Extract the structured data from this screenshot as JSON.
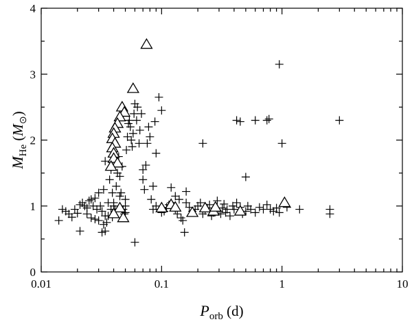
{
  "chart_data": {
    "type": "scatter",
    "title": "",
    "x_scale": "log",
    "xlim": [
      0.01,
      10
    ],
    "ylim": [
      0,
      4
    ],
    "grid": false,
    "legend": "none",
    "xlabel": {
      "main": "P",
      "sub": "orb",
      "unit": " (d)"
    },
    "ylabel": {
      "main": "M",
      "sub": "He",
      "unit_open": " (",
      "unit_main": "M",
      "unit_sub": "⊙",
      "unit_close": ")"
    },
    "x_ticks": [
      {
        "value": 0.01,
        "label": "0.01"
      },
      {
        "value": 0.1,
        "label": "0.1"
      },
      {
        "value": 1,
        "label": "1"
      },
      {
        "value": 10,
        "label": "10"
      }
    ],
    "y_ticks": [
      {
        "value": 0,
        "label": "0"
      },
      {
        "value": 1,
        "label": "1"
      },
      {
        "value": 2,
        "label": "2"
      },
      {
        "value": 3,
        "label": "3"
      },
      {
        "value": 4,
        "label": "4"
      }
    ],
    "series": [
      {
        "marker": "plus",
        "color": "#000000",
        "points": [
          [
            0.014,
            0.78
          ],
          [
            0.015,
            0.95
          ],
          [
            0.016,
            0.92
          ],
          [
            0.017,
            0.88
          ],
          [
            0.018,
            0.83
          ],
          [
            0.019,
            0.95
          ],
          [
            0.02,
            0.89
          ],
          [
            0.021,
            1.02
          ],
          [
            0.022,
            1.05
          ],
          [
            0.021,
            0.62
          ],
          [
            0.023,
            1.0
          ],
          [
            0.024,
            0.97
          ],
          [
            0.025,
            1.08
          ],
          [
            0.026,
            1.1
          ],
          [
            0.024,
            0.88
          ],
          [
            0.026,
            0.82
          ],
          [
            0.027,
            1.0
          ],
          [
            0.028,
            1.12
          ],
          [
            0.029,
            0.95
          ],
          [
            0.03,
            1.2
          ],
          [
            0.031,
            1.0
          ],
          [
            0.032,
            0.92
          ],
          [
            0.033,
            1.25
          ],
          [
            0.034,
            0.85
          ],
          [
            0.028,
            0.8
          ],
          [
            0.03,
            0.78
          ],
          [
            0.032,
            0.6
          ],
          [
            0.034,
            0.62
          ],
          [
            0.035,
            0.75
          ],
          [
            0.033,
            0.72
          ],
          [
            0.036,
            0.85
          ],
          [
            0.036,
            1.05
          ],
          [
            0.037,
            1.4
          ],
          [
            0.038,
            1.55
          ],
          [
            0.034,
            1.68
          ],
          [
            0.039,
            1.2
          ],
          [
            0.038,
            0.95
          ],
          [
            0.039,
            0.83
          ],
          [
            0.04,
            1.0
          ],
          [
            0.041,
            0.95
          ],
          [
            0.042,
            1.3
          ],
          [
            0.043,
            1.5
          ],
          [
            0.044,
            1.75
          ],
          [
            0.045,
            1.45
          ],
          [
            0.046,
            1.2
          ],
          [
            0.047,
            1.6
          ],
          [
            0.048,
            0.95
          ],
          [
            0.049,
            0.88
          ],
          [
            0.05,
            0.9
          ],
          [
            0.05,
            1.0
          ],
          [
            0.051,
            1.85
          ],
          [
            0.052,
            2.05
          ],
          [
            0.053,
            2.25
          ],
          [
            0.054,
            2.3
          ],
          [
            0.055,
            2.2
          ],
          [
            0.056,
            2.0
          ],
          [
            0.057,
            1.9
          ],
          [
            0.058,
            2.1
          ],
          [
            0.059,
            2.4
          ],
          [
            0.06,
            2.55
          ],
          [
            0.062,
            2.3
          ],
          [
            0.063,
            2.5
          ],
          [
            0.065,
            1.95
          ],
          [
            0.066,
            2.15
          ],
          [
            0.068,
            2.4
          ],
          [
            0.07,
            1.4
          ],
          [
            0.07,
            1.55
          ],
          [
            0.072,
            1.25
          ],
          [
            0.074,
            1.62
          ],
          [
            0.076,
            1.95
          ],
          [
            0.078,
            2.2
          ],
          [
            0.08,
            2.05
          ],
          [
            0.082,
            1.1
          ],
          [
            0.085,
            1.3
          ],
          [
            0.088,
            2.28
          ],
          [
            0.09,
            1.8
          ],
          [
            0.095,
            2.65
          ],
          [
            0.1,
            2.45
          ],
          [
            0.09,
            1.0
          ],
          [
            0.085,
            0.95
          ],
          [
            0.1,
            0.9
          ],
          [
            0.105,
            0.92
          ],
          [
            0.11,
            0.98
          ],
          [
            0.115,
            1.02
          ],
          [
            0.12,
            1.05
          ],
          [
            0.125,
            1.0
          ],
          [
            0.13,
            0.95
          ],
          [
            0.135,
            0.88
          ],
          [
            0.14,
            1.1
          ],
          [
            0.145,
            0.82
          ],
          [
            0.15,
            0.78
          ],
          [
            0.155,
            0.6
          ],
          [
            0.16,
            1.05
          ],
          [
            0.17,
            0.98
          ],
          [
            0.18,
            0.92
          ],
          [
            0.19,
            0.95
          ],
          [
            0.2,
            1.0
          ],
          [
            0.21,
            1.05
          ],
          [
            0.22,
            0.88
          ],
          [
            0.23,
            0.93
          ],
          [
            0.24,
            0.97
          ],
          [
            0.25,
            1.02
          ],
          [
            0.26,
            0.85
          ],
          [
            0.27,
            0.9
          ],
          [
            0.28,
            0.95
          ],
          [
            0.29,
            1.08
          ],
          [
            0.3,
            0.92
          ],
          [
            0.31,
            0.88
          ],
          [
            0.32,
            0.97
          ],
          [
            0.33,
            1.03
          ],
          [
            0.34,
            0.9
          ],
          [
            0.35,
            0.95
          ],
          [
            0.37,
            0.85
          ],
          [
            0.39,
            1.0
          ],
          [
            0.4,
            0.95
          ],
          [
            0.42,
            1.05
          ],
          [
            0.45,
            0.98
          ],
          [
            0.47,
            0.88
          ],
          [
            0.5,
            0.92
          ],
          [
            0.52,
            1.0
          ],
          [
            0.55,
            0.95
          ],
          [
            0.6,
            0.9
          ],
          [
            0.65,
            0.98
          ],
          [
            0.7,
            0.95
          ],
          [
            0.75,
            1.02
          ],
          [
            0.8,
            0.95
          ],
          [
            0.85,
            0.92
          ],
          [
            0.9,
            0.97
          ],
          [
            0.95,
            0.9
          ],
          [
            1.1,
            0.98
          ],
          [
            1.4,
            0.95
          ],
          [
            2.5,
            0.95
          ],
          [
            2.5,
            0.88
          ],
          [
            0.06,
            0.45
          ],
          [
            0.22,
            1.95
          ],
          [
            0.42,
            2.3
          ],
          [
            0.45,
            2.28
          ],
          [
            0.6,
            2.3
          ],
          [
            0.75,
            2.3
          ],
          [
            0.78,
            2.32
          ],
          [
            0.5,
            1.44
          ],
          [
            0.95,
            3.15
          ],
          [
            1.0,
            1.95
          ],
          [
            3.0,
            2.3
          ],
          [
            0.12,
            1.28
          ],
          [
            0.13,
            1.15
          ],
          [
            0.16,
            1.22
          ],
          [
            0.05,
            1.1
          ],
          [
            0.045,
            1.15
          ],
          [
            0.04,
            1.05
          ]
        ]
      },
      {
        "marker": "triangle",
        "color": "#000000",
        "points": [
          [
            0.075,
            3.45
          ],
          [
            0.058,
            2.78
          ],
          [
            0.047,
            2.5
          ],
          [
            0.049,
            2.42
          ],
          [
            0.045,
            2.35
          ],
          [
            0.043,
            2.25
          ],
          [
            0.041,
            2.18
          ],
          [
            0.04,
            2.1
          ],
          [
            0.039,
            2.02
          ],
          [
            0.041,
            1.95
          ],
          [
            0.039,
            1.88
          ],
          [
            0.04,
            1.8
          ],
          [
            0.04,
            1.72
          ],
          [
            0.043,
            1.65
          ],
          [
            0.038,
            1.6
          ],
          [
            0.045,
            0.97
          ],
          [
            0.04,
            0.88
          ],
          [
            0.048,
            0.82
          ],
          [
            0.1,
            0.97
          ],
          [
            0.12,
            1.02
          ],
          [
            0.13,
            0.98
          ],
          [
            0.18,
            0.9
          ],
          [
            0.23,
            0.97
          ],
          [
            0.27,
            0.92
          ],
          [
            0.28,
            0.98
          ],
          [
            0.45,
            0.92
          ],
          [
            1.05,
            1.05
          ]
        ]
      }
    ]
  }
}
